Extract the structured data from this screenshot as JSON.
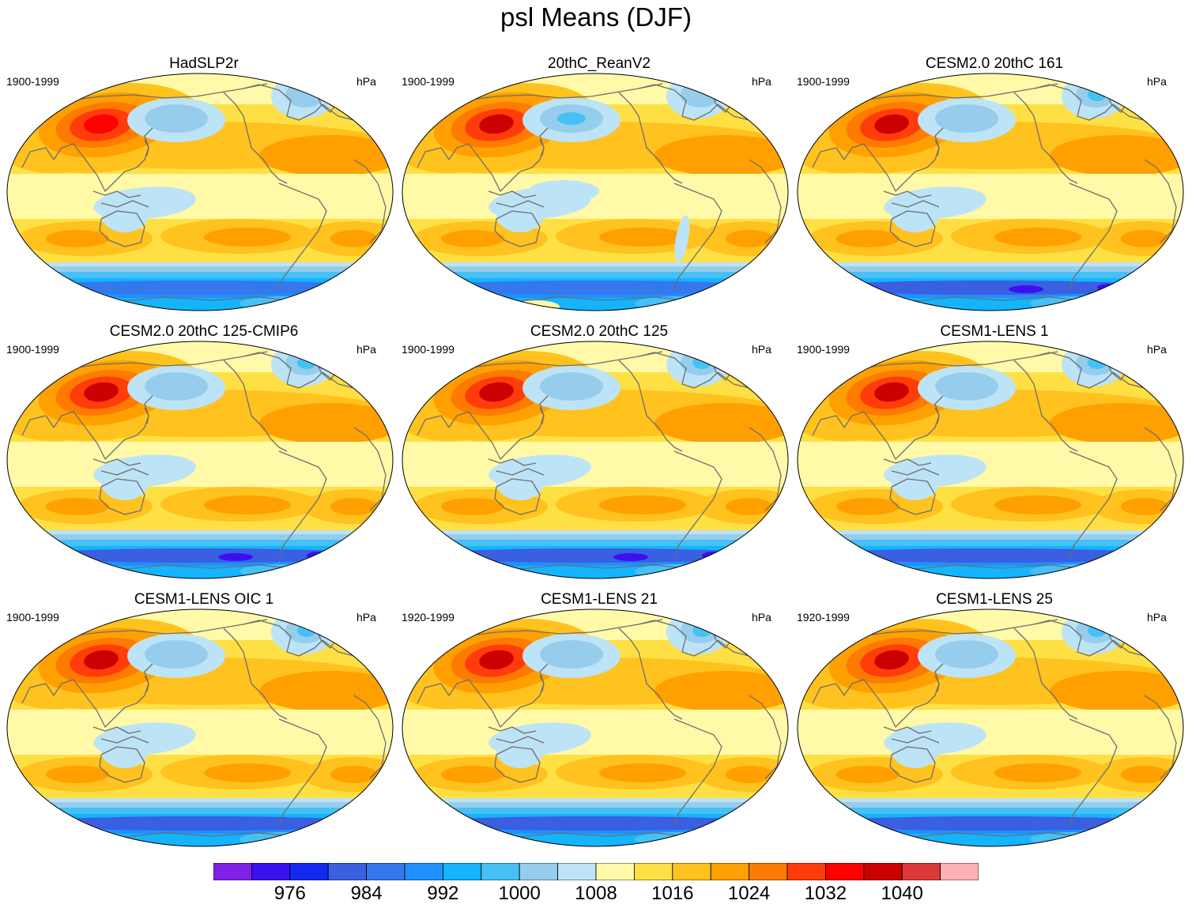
{
  "title": "psl Means (DJF)",
  "panels": [
    {
      "title": "HadSLP2r",
      "period": "1900-1999",
      "units": "hPa",
      "variant": 0
    },
    {
      "title": "20thC_ReanV2",
      "period": "1900-1999",
      "units": "hPa",
      "variant": 1
    },
    {
      "title": "CESM2.0 20thC 161",
      "period": "1900-1999",
      "units": "hPa",
      "variant": 2
    },
    {
      "title": "CESM2.0 20thC 125-CMIP6",
      "period": "1900-1999",
      "units": "hPa",
      "variant": 2
    },
    {
      "title": "CESM2.0 20thC 125",
      "period": "1900-1999",
      "units": "hPa",
      "variant": 2
    },
    {
      "title": "CESM1-LENS 1",
      "period": "1900-1999",
      "units": "hPa",
      "variant": 3
    },
    {
      "title": "CESM1-LENS OIC 1",
      "period": "1900-1999",
      "units": "hPa",
      "variant": 3
    },
    {
      "title": "CESM1-LENS 21",
      "period": "1920-1999",
      "units": "hPa",
      "variant": 3
    },
    {
      "title": "CESM1-LENS 25",
      "period": "1920-1999",
      "units": "hPa",
      "variant": 3
    }
  ],
  "colorbar": {
    "colors": [
      "#8020e8",
      "#3a10f0",
      "#1428f0",
      "#3a5fe0",
      "#3478ec",
      "#1e90ff",
      "#14b4ff",
      "#46c1f5",
      "#96cdec",
      "#bde3f6",
      "#fff9a8",
      "#ffe044",
      "#ffc21e",
      "#ffa000",
      "#ff7a00",
      "#ff3c0a",
      "#ff0000",
      "#cc0000",
      "#dd3838",
      "#ffb0b4"
    ],
    "labels": [
      "976",
      "984",
      "992",
      "1000",
      "1008",
      "1016",
      "1024",
      "1032",
      "1040"
    ]
  }
}
